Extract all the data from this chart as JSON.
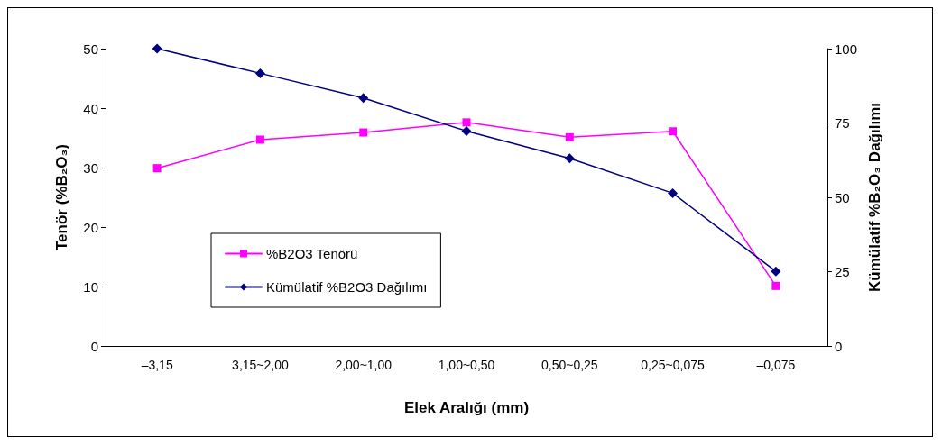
{
  "chart_data": {
    "type": "line",
    "xlabel": "Elek Aralığı (mm)",
    "ylabel": "Tenör (%B₂O₃)",
    "y2label": "Kümülatif %B₂O₃ Dağılımı",
    "categories": [
      "–3,15",
      "3,15~2,00",
      "2,00~1,00",
      "1,00~0,50",
      "0,50~0,25",
      "0,25~0,075",
      "–0,075"
    ],
    "series": [
      {
        "name": "%B2O3 Tenörü",
        "color": "#ff00ff",
        "marker": "square",
        "values": [
          29.9,
          34.7,
          35.9,
          37.6,
          35.1,
          36.1,
          10.1
        ]
      },
      {
        "name": "Kümülatif %B2O3 Dağılımı",
        "color": "#000080",
        "marker": "diamond",
        "axis": "y2",
        "values": [
          100,
          91.7,
          83.4,
          72.3,
          63.1,
          51.4,
          25.1
        ]
      }
    ],
    "ylim": [
      0,
      50
    ],
    "yticks": [
      0,
      10,
      20,
      30,
      40,
      50
    ],
    "y2lim": [
      0,
      100
    ],
    "y2ticks": [
      0,
      25,
      50,
      75,
      100
    ],
    "grid": false,
    "legend": "left",
    "line_style": "solid"
  }
}
